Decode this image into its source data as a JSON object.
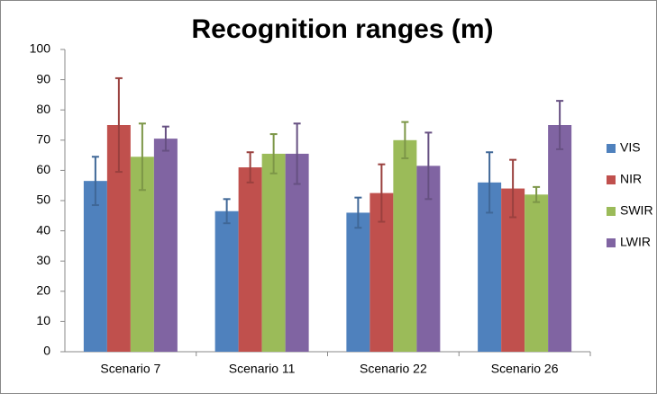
{
  "chart_data": {
    "type": "bar",
    "title": "Recognition ranges (m)",
    "categories": [
      "Scenario 7",
      "Scenario 11",
      "Scenario 22",
      "Scenario 26"
    ],
    "series": [
      {
        "name": "VIS",
        "color": "#4f81bd",
        "values": [
          56.5,
          46.5,
          46,
          56
        ],
        "errors": [
          8,
          4,
          5,
          10
        ]
      },
      {
        "name": "NIR",
        "color": "#c0504d",
        "values": [
          75,
          61,
          52.5,
          54
        ],
        "errors": [
          15.5,
          5,
          9.5,
          9.5
        ]
      },
      {
        "name": "SWIR",
        "color": "#9bbb59",
        "values": [
          64.5,
          65.5,
          70,
          52
        ],
        "errors": [
          11,
          6.5,
          6,
          2.5
        ]
      },
      {
        "name": "LWIR",
        "color": "#8064a2",
        "values": [
          70.5,
          65.5,
          61.5,
          75
        ],
        "errors": [
          4,
          10,
          11,
          8
        ]
      }
    ],
    "ylim": [
      0,
      100
    ],
    "yticks": [
      0,
      10,
      20,
      30,
      40,
      50,
      60,
      70,
      80,
      90,
      100
    ],
    "grid": false,
    "legend": "right"
  }
}
